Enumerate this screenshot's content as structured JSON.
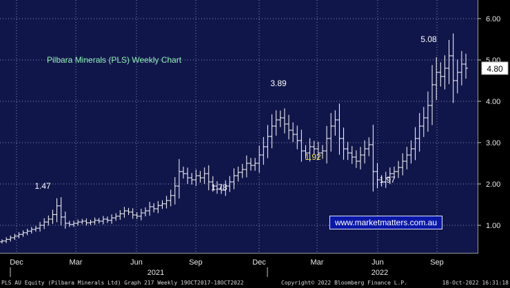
{
  "chart_data": {
    "type": "ohlc",
    "title": "Pilbara Minerals (PLS) Weekly Chart",
    "y_ticks": [
      "1.00",
      "2.00",
      "3.00",
      "4.00",
      "5.00",
      "6.00"
    ],
    "ylim": [
      0.35,
      6.2
    ],
    "x_months": [
      "Dec",
      "Mar",
      "Jun",
      "Sep",
      "Dec",
      "Mar",
      "Jun",
      "Sep"
    ],
    "x_years": [
      "2021",
      "2022"
    ],
    "last_price_label": "4.80",
    "grid": true,
    "annotations": [
      {
        "text": "1.47",
        "value": 1.47
      },
      {
        "text": "1.78",
        "value": 1.78
      },
      {
        "text": "3.89",
        "value": 3.89
      },
      {
        "text": "1.92",
        "value": 1.92
      },
      {
        "text": "1.97",
        "value": 1.97
      },
      {
        "text": "5.08",
        "value": 5.08
      }
    ],
    "weekly_close": [
      0.62,
      0.66,
      0.7,
      0.74,
      0.78,
      0.82,
      0.86,
      0.9,
      0.93,
      1.0,
      1.08,
      1.15,
      1.26,
      1.47,
      1.2,
      1.05,
      1.02,
      1.05,
      1.08,
      1.1,
      1.06,
      1.08,
      1.12,
      1.1,
      1.15,
      1.12,
      1.18,
      1.22,
      1.28,
      1.35,
      1.32,
      1.25,
      1.22,
      1.3,
      1.35,
      1.45,
      1.4,
      1.48,
      1.52,
      1.6,
      1.72,
      1.95,
      2.3,
      2.25,
      2.15,
      2.1,
      2.2,
      2.15,
      2.25,
      2.05,
      1.95,
      1.88,
      1.85,
      1.95,
      2.05,
      2.2,
      2.28,
      2.35,
      2.5,
      2.45,
      2.5,
      2.7,
      2.9,
      3.15,
      3.4,
      3.55,
      3.6,
      3.45,
      3.3,
      3.2,
      3.05,
      2.8,
      2.75,
      2.9,
      2.85,
      2.75,
      2.8,
      3.1,
      3.4,
      3.55,
      3.1,
      2.85,
      2.75,
      2.65,
      2.55,
      2.7,
      2.85,
      2.95,
      2.3,
      2.1,
      2.05,
      2.15,
      2.25,
      2.3,
      2.4,
      2.55,
      2.7,
      2.85,
      3.1,
      3.4,
      3.6,
      3.9,
      4.4,
      4.7,
      4.6,
      4.8,
      5.1,
      4.5,
      4.7,
      4.9,
      4.8
    ],
    "date_range": "Weekly 19OCT2017-18OCT2022"
  },
  "annotation_colors": {
    "1.47": "#ffffff",
    "1.78": "#ffffff",
    "3.89": "#ffffff",
    "1.92": "#f5e84a",
    "1.97": "#ffffff",
    "5.08": "#ffffff"
  },
  "colors": {
    "background": "#11164a",
    "grid": "#8a8fbf",
    "bars": "#ffffff",
    "title": "#8ef2b7",
    "watermark_bg": "#0a18a8"
  },
  "watermark": "www.marketmatters.com.au",
  "footer": {
    "left": "PLS AU Equity (Pilbara Minerals Ltd) Graph 217  Weekly 19OCT2017-18OCT2022",
    "mid": "Copyright© 2022 Bloomberg Finance L.P.",
    "right": "18-Oct-2022 16:31:18"
  }
}
